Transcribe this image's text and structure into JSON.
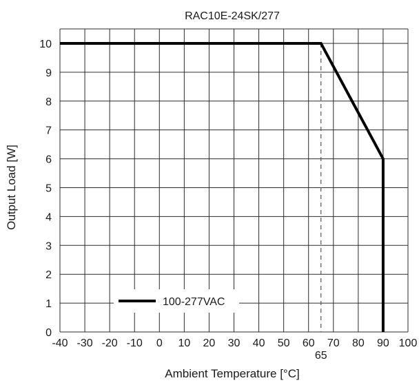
{
  "chart_data": {
    "type": "line",
    "title": "RAC10E-24SK/277",
    "xlabel": "Ambient Temperature [°C]",
    "ylabel": "Output Load [W]",
    "xlim": [
      -40,
      100
    ],
    "ylim": [
      0,
      10.5
    ],
    "x_ticks": [
      -40,
      -30,
      -20,
      -10,
      0,
      10,
      20,
      30,
      40,
      50,
      60,
      70,
      80,
      90,
      100
    ],
    "y_ticks": [
      0,
      1,
      2,
      3,
      4,
      5,
      6,
      7,
      8,
      9,
      10
    ],
    "grid": true,
    "series": [
      {
        "name": "100-277VAC",
        "color": "#000000",
        "x": [
          -40,
          65,
          90,
          90
        ],
        "y": [
          10,
          10,
          6,
          0
        ]
      }
    ],
    "annotations": [
      {
        "label": "65",
        "x": 65,
        "style": "dashed-vertical-marker"
      }
    ],
    "legend_position": "lower-left"
  }
}
